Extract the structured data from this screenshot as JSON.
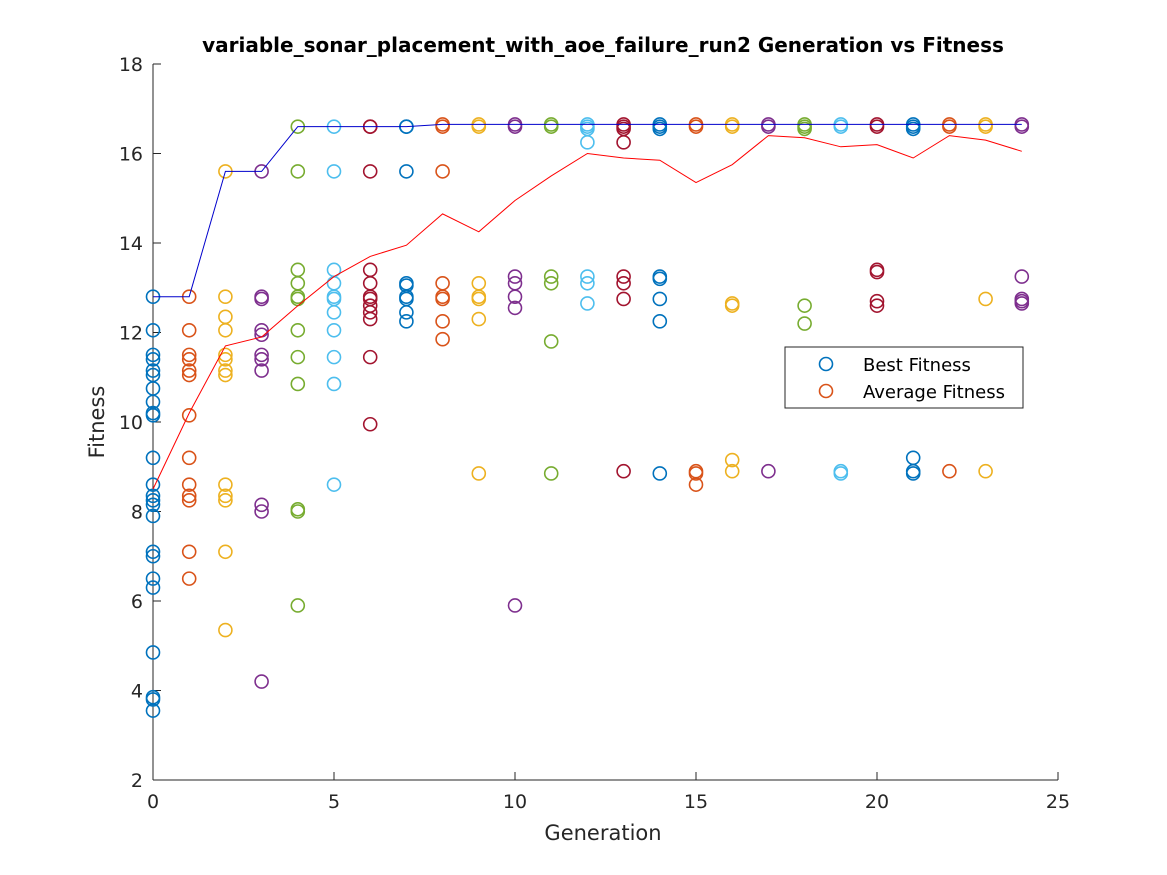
{
  "chart_data": {
    "type": "scatter",
    "title": "variable_sonar_placement_with_aoe_failure_run2 Generation vs Fitness",
    "xlabel": "Generation",
    "ylabel": "Fitness",
    "xlim": [
      0,
      25
    ],
    "ylim": [
      2,
      18
    ],
    "xticks": [
      "0",
      "5",
      "10",
      "15",
      "20",
      "25"
    ],
    "yticks": [
      "2",
      "4",
      "6",
      "8",
      "10",
      "12",
      "14",
      "16",
      "18"
    ],
    "grid": false,
    "legend_position": "right",
    "legend": [
      {
        "label": "Best Fitness",
        "color": "#0072BD"
      },
      {
        "label": "Average Fitness",
        "color": "#D95319"
      }
    ],
    "best_fitness_line": {
      "color": "#0000CC",
      "x": [
        0,
        1,
        2,
        3,
        4,
        5,
        6,
        7,
        8,
        9,
        10,
        11,
        12,
        13,
        14,
        15,
        16,
        17,
        18,
        19,
        20,
        21,
        22,
        23,
        24
      ],
      "y": [
        12.8,
        12.8,
        15.6,
        15.6,
        16.6,
        16.6,
        16.6,
        16.6,
        16.65,
        16.65,
        16.65,
        16.65,
        16.65,
        16.65,
        16.65,
        16.65,
        16.65,
        16.65,
        16.65,
        16.65,
        16.65,
        16.65,
        16.65,
        16.65,
        16.65
      ]
    },
    "average_fitness_line": {
      "color": "#FF0000",
      "x": [
        0,
        1,
        2,
        3,
        4,
        5,
        6,
        7,
        8,
        9,
        10,
        11,
        12,
        13,
        14,
        15,
        16,
        17,
        18,
        19,
        20,
        21,
        22,
        23,
        24
      ],
      "y": [
        8.5,
        10.2,
        11.7,
        11.9,
        12.6,
        13.25,
        13.7,
        13.95,
        14.65,
        14.25,
        14.95,
        15.5,
        16.0,
        15.9,
        15.85,
        15.35,
        15.75,
        16.4,
        16.35,
        16.15,
        16.2,
        15.9,
        16.4,
        16.3,
        16.05
      ]
    },
    "series": [
      {
        "generation": 0,
        "color": "#0072BD",
        "values": [
          12.8,
          12.05,
          11.5,
          11.4,
          11.15,
          11.05,
          10.75,
          10.45,
          10.2,
          10.15,
          9.2,
          8.6,
          8.35,
          8.25,
          8.15,
          7.9,
          7.1,
          7.0,
          6.5,
          6.3,
          4.85,
          3.85,
          3.8,
          3.55
        ]
      },
      {
        "generation": 1,
        "color": "#D95319",
        "values": [
          12.8,
          12.05,
          11.5,
          11.4,
          11.15,
          11.05,
          10.15,
          9.2,
          8.6,
          8.35,
          8.25,
          7.1,
          6.5
        ]
      },
      {
        "generation": 2,
        "color": "#EDB120",
        "values": [
          15.6,
          12.8,
          12.35,
          12.05,
          11.5,
          11.4,
          11.15,
          11.05,
          8.6,
          8.35,
          8.25,
          7.1,
          5.35
        ]
      },
      {
        "generation": 3,
        "color": "#7E2F8E",
        "values": [
          15.6,
          12.8,
          12.75,
          12.05,
          11.95,
          11.5,
          11.4,
          11.15,
          8.15,
          8.0,
          4.2
        ]
      },
      {
        "generation": 4,
        "color": "#77AC30",
        "values": [
          16.6,
          15.6,
          13.4,
          13.1,
          12.8,
          12.75,
          12.05,
          11.45,
          10.85,
          8.05,
          8.0,
          5.9
        ]
      },
      {
        "generation": 5,
        "color": "#4DBEEE",
        "values": [
          16.6,
          15.6,
          13.4,
          13.1,
          12.8,
          12.75,
          12.45,
          12.05,
          11.45,
          10.85,
          8.6
        ]
      },
      {
        "generation": 6,
        "color": "#A2142F",
        "values": [
          16.6,
          16.6,
          15.6,
          13.4,
          13.1,
          12.8,
          12.75,
          12.6,
          12.45,
          12.3,
          11.45,
          9.95
        ]
      },
      {
        "generation": 7,
        "color": "#0072BD",
        "values": [
          16.6,
          16.6,
          15.6,
          13.1,
          13.05,
          12.8,
          12.75,
          12.45,
          12.25
        ]
      },
      {
        "generation": 8,
        "color": "#D95319",
        "values": [
          16.65,
          16.6,
          15.6,
          13.1,
          12.8,
          12.75,
          12.25,
          11.85
        ]
      },
      {
        "generation": 9,
        "color": "#EDB120",
        "values": [
          16.65,
          16.6,
          13.1,
          12.8,
          12.75,
          12.3,
          8.85
        ]
      },
      {
        "generation": 10,
        "color": "#7E2F8E",
        "values": [
          16.65,
          16.6,
          13.25,
          13.1,
          12.8,
          12.55,
          5.9
        ]
      },
      {
        "generation": 11,
        "color": "#77AC30",
        "values": [
          16.65,
          16.6,
          13.25,
          13.1,
          11.8,
          8.85
        ]
      },
      {
        "generation": 12,
        "color": "#4DBEEE",
        "values": [
          16.65,
          16.6,
          16.55,
          16.25,
          13.25,
          13.1,
          12.65
        ]
      },
      {
        "generation": 13,
        "color": "#A2142F",
        "values": [
          16.65,
          16.6,
          16.55,
          16.25,
          13.25,
          13.1,
          12.75,
          8.9
        ]
      },
      {
        "generation": 14,
        "color": "#0072BD",
        "values": [
          16.65,
          16.6,
          16.55,
          13.25,
          13.2,
          12.75,
          12.25,
          8.85
        ]
      },
      {
        "generation": 15,
        "color": "#D95319",
        "values": [
          16.65,
          16.6,
          8.9,
          8.85,
          8.6
        ]
      },
      {
        "generation": 16,
        "color": "#EDB120",
        "values": [
          16.65,
          16.6,
          12.65,
          12.6,
          9.15,
          8.9
        ]
      },
      {
        "generation": 17,
        "color": "#7E2F8E",
        "values": [
          16.65,
          16.6,
          8.9
        ]
      },
      {
        "generation": 18,
        "color": "#77AC30",
        "values": [
          16.65,
          16.6,
          16.55,
          12.6,
          12.2
        ]
      },
      {
        "generation": 19,
        "color": "#4DBEEE",
        "values": [
          16.65,
          16.6,
          8.9,
          8.85
        ]
      },
      {
        "generation": 20,
        "color": "#A2142F",
        "values": [
          16.65,
          16.6,
          13.4,
          13.35,
          12.7,
          12.6
        ]
      },
      {
        "generation": 21,
        "color": "#0072BD",
        "values": [
          16.65,
          16.6,
          16.55,
          9.2,
          8.9,
          8.85
        ]
      },
      {
        "generation": 22,
        "color": "#D95319",
        "values": [
          16.65,
          16.6,
          8.9
        ]
      },
      {
        "generation": 23,
        "color": "#EDB120",
        "values": [
          16.65,
          16.6,
          12.75,
          8.9
        ]
      },
      {
        "generation": 24,
        "color": "#7E2F8E",
        "values": [
          16.65,
          16.6,
          13.25,
          12.75,
          12.7,
          12.65
        ]
      }
    ]
  }
}
